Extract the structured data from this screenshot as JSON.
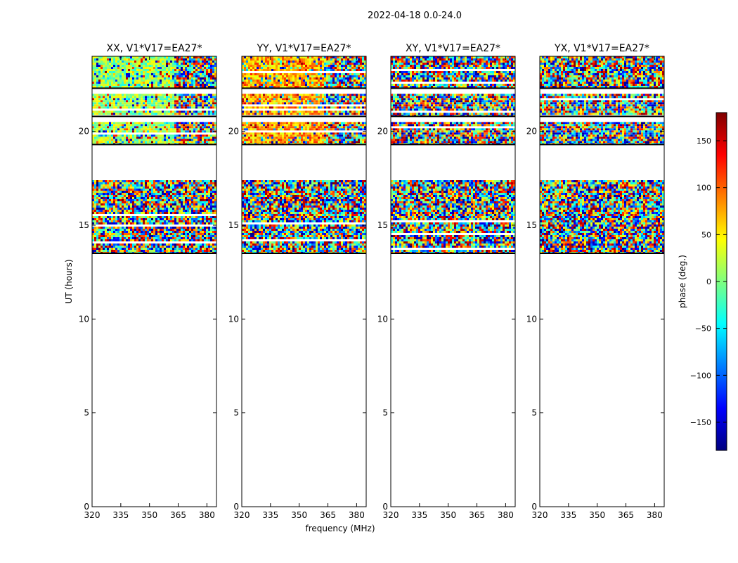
{
  "figure": {
    "suptitle": "2022-04-18 0.0-24.0",
    "xlabel": "frequency (MHz)",
    "ylabel": "UT (hours)"
  },
  "colorbar": {
    "label": "phase (deg.)",
    "range": [
      -180,
      180
    ],
    "ticks": [
      150,
      100,
      50,
      0,
      -50,
      -100,
      -150
    ],
    "tick_labels": [
      "150",
      "100",
      "50",
      "0",
      "−50",
      "−100",
      "−150"
    ],
    "colors": [
      "#00007f",
      "#0000ff",
      "#007fff",
      "#00ffff",
      "#7fff7f",
      "#ffff00",
      "#ff7f00",
      "#ff0000",
      "#7f0000"
    ]
  },
  "chart_data": [
    {
      "type": "heatmap",
      "title": "XX, V1*V17=EA27*",
      "xlim": [
        320,
        385
      ],
      "ylim": [
        0,
        24
      ],
      "xticks": [
        320,
        335,
        350,
        365,
        380
      ],
      "yticks": [
        0,
        5,
        10,
        15,
        20
      ],
      "xlabel": "",
      "ylabel": "UT (hours)",
      "value": "phase (deg.)",
      "data_bands_ut": [
        [
          13.5,
          17.4
        ],
        [
          19.3,
          20.5
        ],
        [
          20.8,
          22.0
        ],
        [
          22.3,
          24.0
        ]
      ],
      "dominant_phase_deg": 10,
      "coherent_freq_range_mhz": [
        320,
        362
      ]
    },
    {
      "type": "heatmap",
      "title": "YY, V1*V17=EA27*",
      "xlim": [
        320,
        385
      ],
      "ylim": [
        0,
        24
      ],
      "xticks": [
        320,
        335,
        350,
        365,
        380
      ],
      "yticks": [
        0,
        5,
        10,
        15,
        20
      ],
      "xlabel": "frequency (MHz)",
      "ylabel": "",
      "value": "phase (deg.)",
      "data_bands_ut": [
        [
          13.5,
          17.4
        ],
        [
          19.3,
          20.5
        ],
        [
          20.8,
          22.0
        ],
        [
          22.3,
          24.0
        ]
      ],
      "dominant_phase_deg": 75,
      "coherent_freq_range_mhz": [
        320,
        362
      ]
    },
    {
      "type": "heatmap",
      "title": "XY, V1*V17=EA27*",
      "xlim": [
        320,
        385
      ],
      "ylim": [
        0,
        24
      ],
      "xticks": [
        320,
        335,
        350,
        365,
        380
      ],
      "yticks": [
        0,
        5,
        10,
        15,
        20
      ],
      "xlabel": "",
      "ylabel": "",
      "value": "phase (deg.)",
      "data_bands_ut": [
        [
          13.5,
          17.4
        ],
        [
          19.3,
          20.5
        ],
        [
          20.8,
          22.0
        ],
        [
          22.3,
          24.0
        ]
      ],
      "dominant_phase_deg": null,
      "coherent_freq_range_mhz": null
    },
    {
      "type": "heatmap",
      "title": "YX, V1*V17=EA27*",
      "xlim": [
        320,
        385
      ],
      "ylim": [
        0,
        24
      ],
      "xticks": [
        320,
        335,
        350,
        365,
        380
      ],
      "yticks": [
        0,
        5,
        10,
        15,
        20
      ],
      "xlabel": "",
      "ylabel": "",
      "value": "phase (deg.)",
      "data_bands_ut": [
        [
          13.5,
          17.4
        ],
        [
          19.3,
          20.5
        ],
        [
          20.8,
          22.0
        ],
        [
          22.3,
          24.0
        ]
      ],
      "dominant_phase_deg": null,
      "coherent_freq_range_mhz": null
    }
  ]
}
